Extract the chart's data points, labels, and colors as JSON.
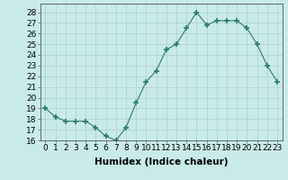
{
  "x": [
    0,
    1,
    2,
    3,
    4,
    5,
    6,
    7,
    8,
    9,
    10,
    11,
    12,
    13,
    14,
    15,
    16,
    17,
    18,
    19,
    20,
    21,
    22,
    23
  ],
  "y": [
    19.0,
    18.2,
    17.8,
    17.8,
    17.8,
    17.2,
    16.4,
    16.0,
    17.2,
    19.5,
    21.5,
    22.5,
    24.5,
    25.0,
    26.5,
    28.0,
    26.8,
    27.2,
    27.2,
    27.2,
    26.5,
    25.0,
    23.0,
    21.5
  ],
  "line_color": "#2d7a6a",
  "marker": "+",
  "marker_size": 4,
  "marker_linewidth": 1.2,
  "bg_color": "#c8eae8",
  "grid_color": "#b0d4d0",
  "xlabel": "Humidex (Indice chaleur)",
  "ylim": [
    16,
    28.8
  ],
  "xlim": [
    -0.5,
    23.5
  ],
  "yticks": [
    16,
    17,
    18,
    19,
    20,
    21,
    22,
    23,
    24,
    25,
    26,
    27,
    28
  ],
  "xticks": [
    0,
    1,
    2,
    3,
    4,
    5,
    6,
    7,
    8,
    9,
    10,
    11,
    12,
    13,
    14,
    15,
    16,
    17,
    18,
    19,
    20,
    21,
    22,
    23
  ],
  "xtick_labels": [
    "0",
    "1",
    "2",
    "3",
    "4",
    "5",
    "6",
    "7",
    "8",
    "9",
    "10",
    "11",
    "12",
    "13",
    "14",
    "15",
    "16",
    "17",
    "18",
    "19",
    "20",
    "21",
    "22",
    "23"
  ],
  "tick_fontsize": 6.5,
  "xlabel_fontsize": 7.5
}
